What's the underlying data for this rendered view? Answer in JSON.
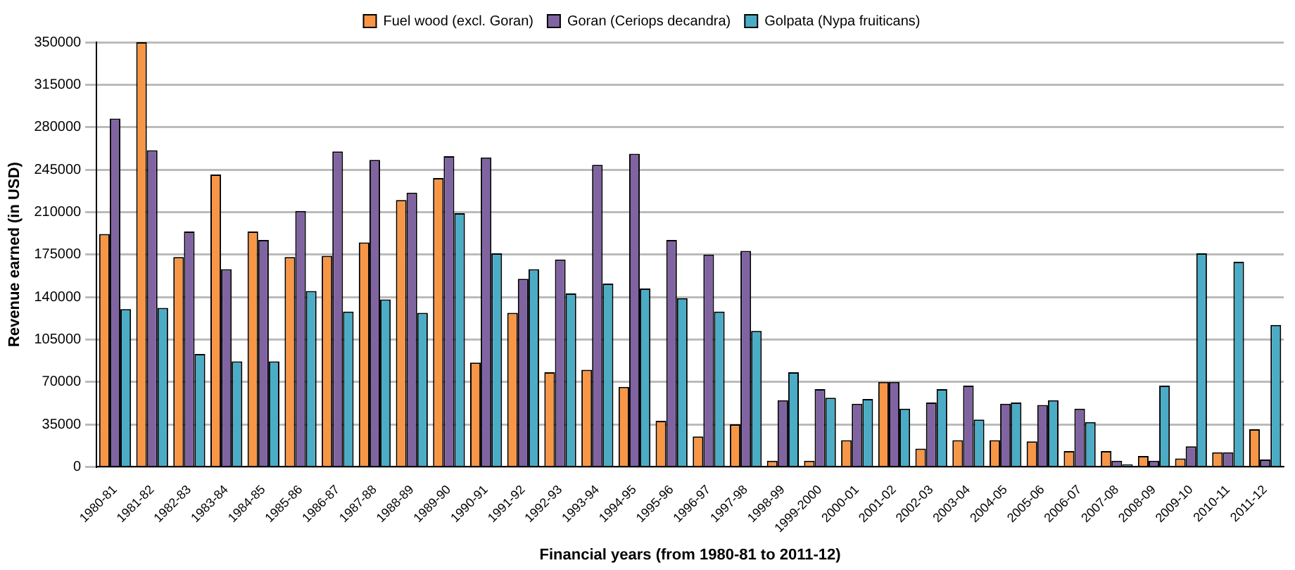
{
  "chart_data": {
    "type": "bar",
    "xlabel": "Financial years (from 1980-81 to 2011-12)",
    "ylabel": "Revenue earned (in USD)",
    "categories": [
      "1980-81",
      "1981-82",
      "1982-83",
      "1983-84",
      "1984-85",
      "1985-86",
      "1986-87",
      "1987-88",
      "1988-89",
      "1989-90",
      "1990-91",
      "1991-92",
      "1992-93",
      "1993-94",
      "1994-95",
      "1995-96",
      "1996-97",
      "1997-98",
      "1998-99",
      "1999-2000",
      "2000-01",
      "2001-02",
      "2002-03",
      "2003-04",
      "2004-05",
      "2005-06",
      "2006-07",
      "2007-08",
      "2008-09",
      "2009-10",
      "2010-11",
      "2011-12"
    ],
    "series": [
      {
        "name": "Fuel wood (excl. Goran)",
        "color": "#f79646",
        "values": [
          192000,
          350000,
          173000,
          241000,
          194000,
          173000,
          174000,
          185000,
          220000,
          238000,
          86000,
          127000,
          78000,
          80000,
          66000,
          38000,
          25000,
          35000,
          5000,
          5000,
          22000,
          70000,
          15000,
          22000,
          22000,
          21000,
          13000,
          13000,
          9000,
          7000,
          12000,
          31000
        ]
      },
      {
        "name": "Goran (Ceriops decandra)",
        "color": "#8064a2",
        "values": [
          287000,
          261000,
          194000,
          163000,
          187000,
          211000,
          260000,
          253000,
          226000,
          256000,
          255000,
          155000,
          171000,
          249000,
          258000,
          187000,
          175000,
          178000,
          55000,
          64000,
          52000,
          70000,
          53000,
          67000,
          52000,
          51000,
          48000,
          5000,
          5000,
          17000,
          12000,
          6000
        ]
      },
      {
        "name": "Golpata (Nypa fruiticans)",
        "color": "#4bacc6",
        "values": [
          130000,
          131000,
          93000,
          87000,
          87000,
          145000,
          128000,
          138000,
          127000,
          209000,
          176000,
          163000,
          143000,
          151000,
          147000,
          139000,
          128000,
          112000,
          78000,
          57000,
          56000,
          48000,
          64000,
          39000,
          53000,
          55000,
          37000,
          2000,
          67000,
          176000,
          169000,
          117000
        ]
      }
    ],
    "ylim": [
      0,
      350000
    ],
    "yticks": [
      0,
      35000,
      70000,
      105000,
      140000,
      175000,
      210000,
      245000,
      280000,
      315000,
      350000
    ],
    "grid": "y",
    "legend": "top"
  }
}
